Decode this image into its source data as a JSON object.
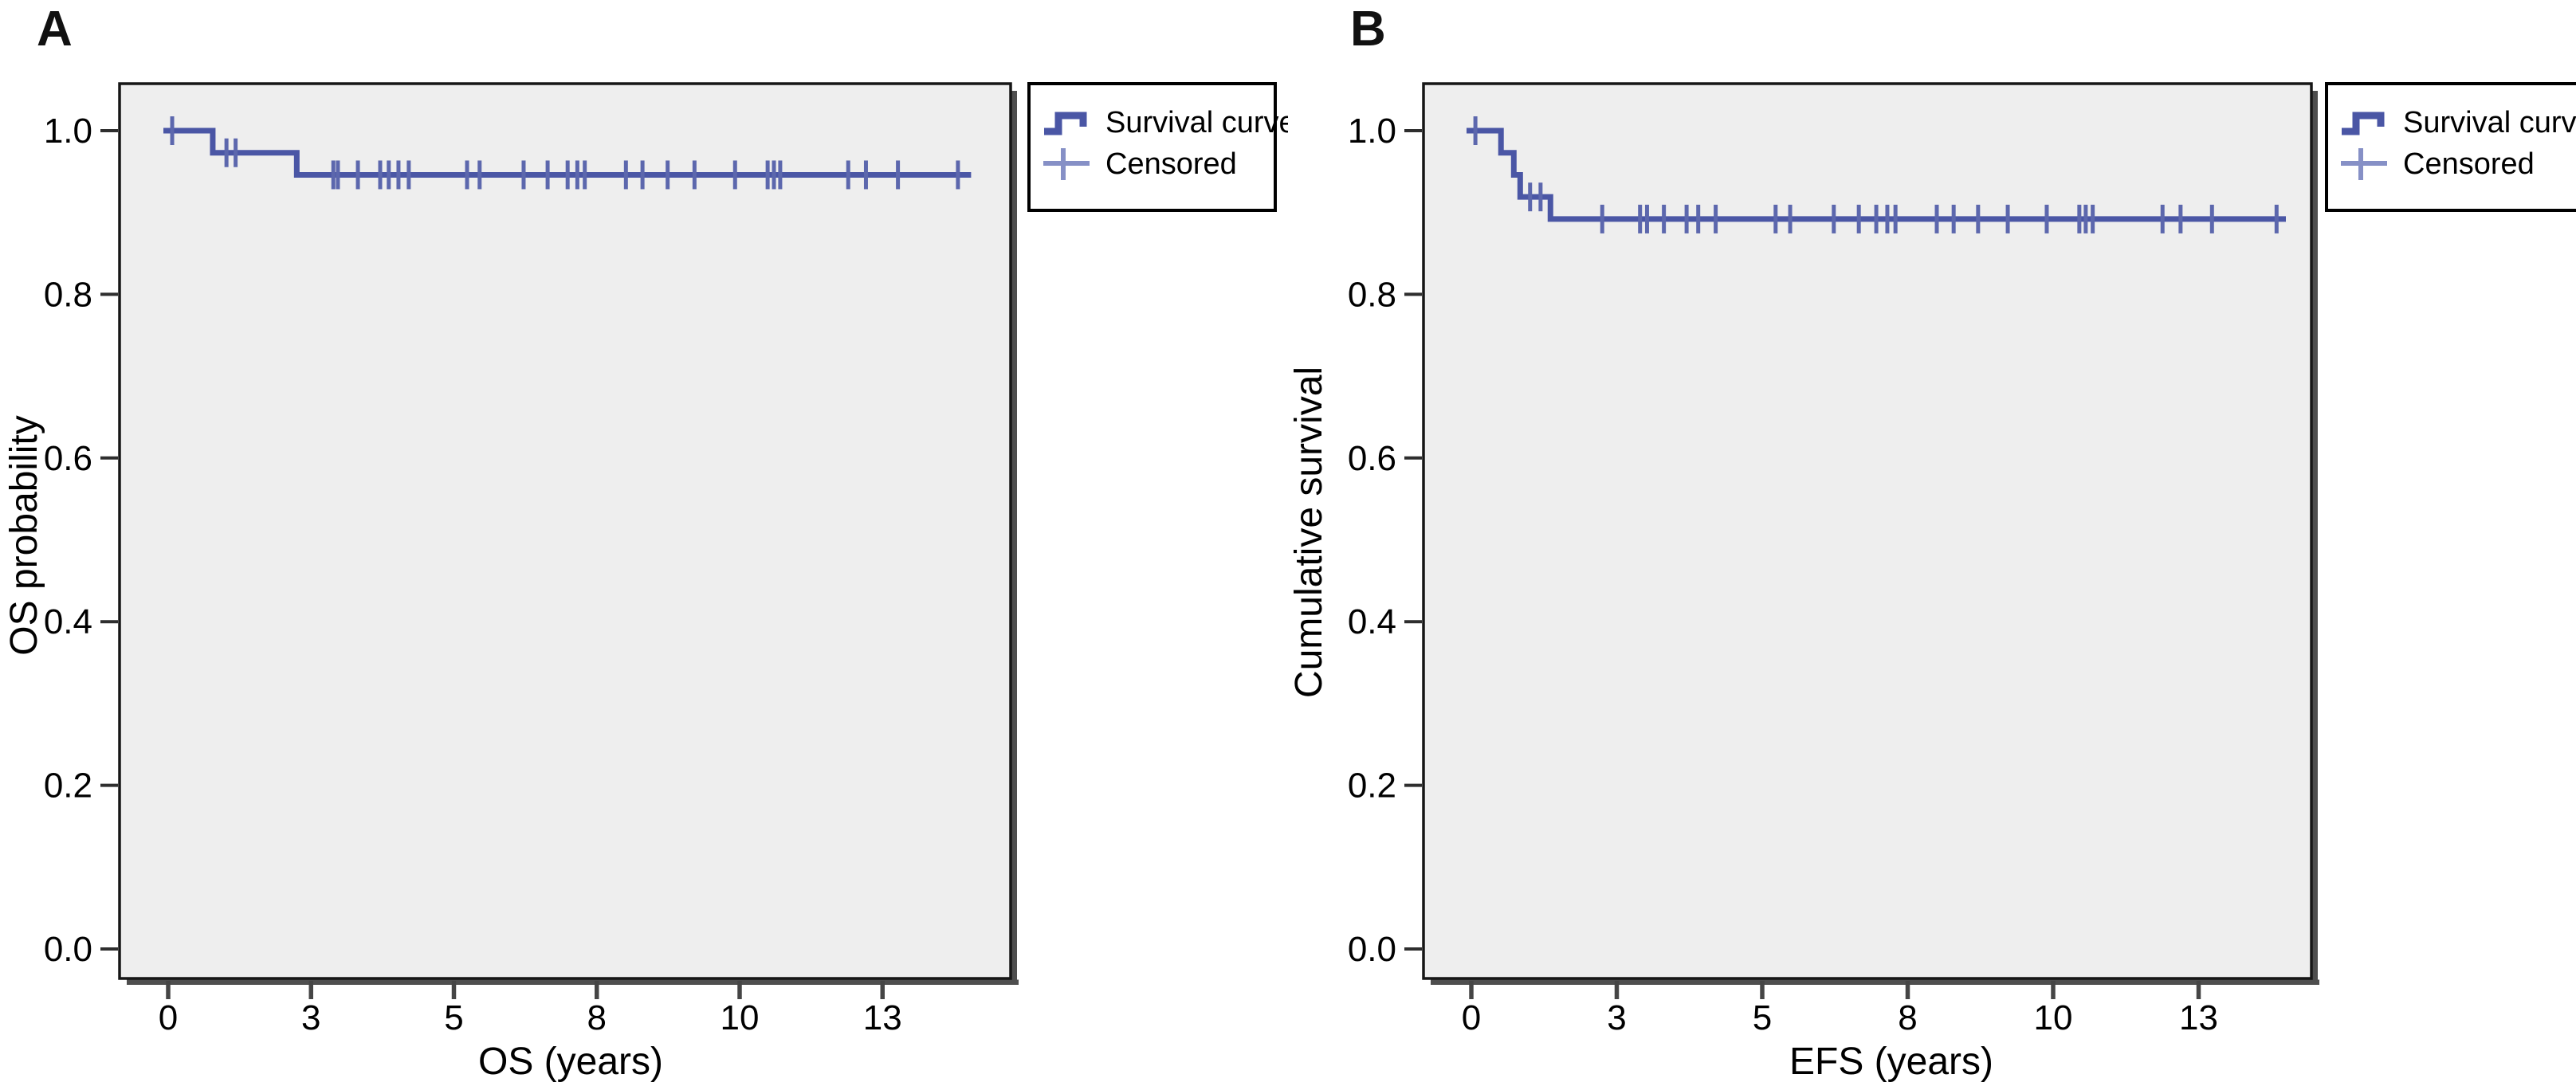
{
  "figure": {
    "background": "#ffffff",
    "panel_letters": [
      "A",
      "B"
    ]
  },
  "chart_data": [
    {
      "type": "line",
      "subtype": "kaplan_meier_step_curve",
      "panel_label": "A",
      "xlabel": "OS (years)",
      "ylabel": "OS probability",
      "x_ticks": {
        "values": [
          0,
          2.5,
          5,
          7.5,
          10,
          12.5
        ],
        "labels": [
          "0",
          "3",
          "5",
          "8",
          "10",
          "13"
        ]
      },
      "y_ticks": {
        "values": [
          1.0,
          0.8,
          0.6,
          0.4,
          0.2,
          0.0
        ],
        "labels": [
          "1.0",
          "0.8",
          "0.6",
          "0.4",
          "0.2",
          "0.0"
        ]
      },
      "xlim": [
        -0.85,
        14.75
      ],
      "ylim": [
        -0.037,
        1.057
      ],
      "grid": false,
      "legend_position": "outside-top-right",
      "survival_steps": [
        {
          "t": 0.0,
          "s": 1.0
        },
        {
          "t": 0.78,
          "s": 0.973
        },
        {
          "t": 2.25,
          "s": 0.946
        }
      ],
      "curve_end_t": 14.05,
      "censored": [
        [
          0.07,
          1.0
        ],
        [
          1.02,
          0.973
        ],
        [
          1.18,
          0.973
        ],
        [
          2.89,
          0.946
        ],
        [
          2.97,
          0.946
        ],
        [
          3.32,
          0.946
        ],
        [
          3.71,
          0.946
        ],
        [
          3.86,
          0.946
        ],
        [
          4.03,
          0.946
        ],
        [
          4.21,
          0.946
        ],
        [
          5.23,
          0.946
        ],
        [
          5.45,
          0.946
        ],
        [
          6.22,
          0.946
        ],
        [
          6.64,
          0.946
        ],
        [
          6.99,
          0.946
        ],
        [
          7.16,
          0.946
        ],
        [
          7.29,
          0.946
        ],
        [
          8.01,
          0.946
        ],
        [
          8.3,
          0.946
        ],
        [
          8.74,
          0.946
        ],
        [
          9.21,
          0.946
        ],
        [
          9.92,
          0.946
        ],
        [
          10.49,
          0.946
        ],
        [
          10.6,
          0.946
        ],
        [
          10.71,
          0.946
        ],
        [
          11.9,
          0.946
        ],
        [
          12.21,
          0.946
        ],
        [
          12.77,
          0.946
        ],
        [
          13.82,
          0.946
        ]
      ],
      "legend_entries": [
        {
          "label": "Survival curve",
          "icon": "step-line-icon"
        },
        {
          "label": "Censored",
          "icon": "plus-icon"
        }
      ],
      "colors": {
        "curve": "#4a56a5",
        "censor": "#5c67ad",
        "legend_censor": "#8690c6",
        "plot_bg": "#eeeeee",
        "frame": "#161616",
        "shadow": "#4e4e4e",
        "tick": "#454545",
        "text": "#000000"
      }
    },
    {
      "type": "line",
      "subtype": "kaplan_meier_step_curve",
      "panel_label": "B",
      "xlabel": "EFS (years)",
      "ylabel": "Cumulative survival",
      "x_ticks": {
        "values": [
          0,
          2.5,
          5,
          7.5,
          10,
          12.5
        ],
        "labels": [
          "0",
          "3",
          "5",
          "8",
          "10",
          "13"
        ]
      },
      "y_ticks": {
        "values": [
          1.0,
          0.8,
          0.6,
          0.4,
          0.2,
          0.0
        ],
        "labels": [
          "1.0",
          "0.8",
          "0.6",
          "0.4",
          "0.2",
          "0.0"
        ]
      },
      "xlim": [
        -0.8,
        14.45
      ],
      "ylim": [
        -0.037,
        1.057
      ],
      "grid": false,
      "legend_position": "outside-top-right",
      "survival_steps": [
        {
          "t": 0.0,
          "s": 1.0
        },
        {
          "t": 0.51,
          "s": 0.973
        },
        {
          "t": 0.73,
          "s": 0.946
        },
        {
          "t": 0.84,
          "s": 0.919
        },
        {
          "t": 1.36,
          "s": 0.892
        }
      ],
      "curve_end_t": 14.0,
      "censored": [
        [
          0.07,
          1.0
        ],
        [
          1.01,
          0.919
        ],
        [
          1.19,
          0.919
        ],
        [
          2.25,
          0.892
        ],
        [
          2.9,
          0.892
        ],
        [
          3.02,
          0.892
        ],
        [
          3.31,
          0.892
        ],
        [
          3.7,
          0.892
        ],
        [
          3.9,
          0.892
        ],
        [
          4.2,
          0.892
        ],
        [
          5.23,
          0.892
        ],
        [
          5.48,
          0.892
        ],
        [
          6.23,
          0.892
        ],
        [
          6.66,
          0.892
        ],
        [
          6.96,
          0.892
        ],
        [
          7.15,
          0.892
        ],
        [
          7.29,
          0.892
        ],
        [
          8.0,
          0.892
        ],
        [
          8.29,
          0.892
        ],
        [
          8.71,
          0.892
        ],
        [
          9.22,
          0.892
        ],
        [
          9.89,
          0.892
        ],
        [
          10.45,
          0.892
        ],
        [
          10.56,
          0.892
        ],
        [
          10.68,
          0.892
        ],
        [
          11.88,
          0.892
        ],
        [
          12.19,
          0.892
        ],
        [
          12.73,
          0.892
        ],
        [
          13.84,
          0.892
        ]
      ],
      "legend_entries": [
        {
          "label": "Survival curve",
          "icon": "step-line-icon"
        },
        {
          "label": "Censored",
          "icon": "plus-icon"
        }
      ],
      "colors": {
        "curve": "#4a56a5",
        "censor": "#5c67ad",
        "legend_censor": "#8690c6",
        "plot_bg": "#eeeeee",
        "frame": "#161616",
        "shadow": "#4e4e4e",
        "tick": "#454545",
        "text": "#000000"
      }
    }
  ]
}
